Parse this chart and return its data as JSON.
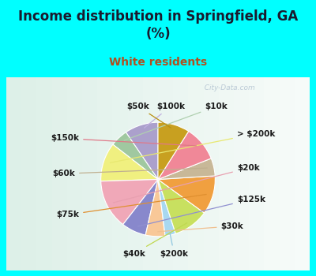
{
  "title": "Income distribution in Springfield, GA\n(%)",
  "subtitle": "White residents",
  "title_color": "#1a1a2e",
  "subtitle_color": "#b05020",
  "background_color": "#00ffff",
  "chart_bg_left": "#e8f5ee",
  "chart_bg_right": "#ffffff",
  "watermark": "  City-Data.com",
  "labels": [
    "$100k",
    "$10k",
    "> $200k",
    "$20k",
    "$125k",
    "$30k",
    "$200k",
    "$40k",
    "$75k",
    "$60k",
    "$150k",
    "$50k"
  ],
  "values": [
    9.5,
    5.0,
    11.0,
    14.0,
    7.0,
    5.5,
    3.0,
    10.0,
    11.0,
    5.0,
    10.0,
    9.0
  ],
  "colors": [
    "#aba0cc",
    "#a0c8a0",
    "#f0f080",
    "#f0a8b8",
    "#8888cc",
    "#f8c898",
    "#a8d8f0",
    "#c8e060",
    "#f0a040",
    "#c8b898",
    "#f08898",
    "#c8a020"
  ],
  "startangle": 90,
  "label_fontsize": 7.5,
  "title_fontsize": 12,
  "subtitle_fontsize": 10
}
